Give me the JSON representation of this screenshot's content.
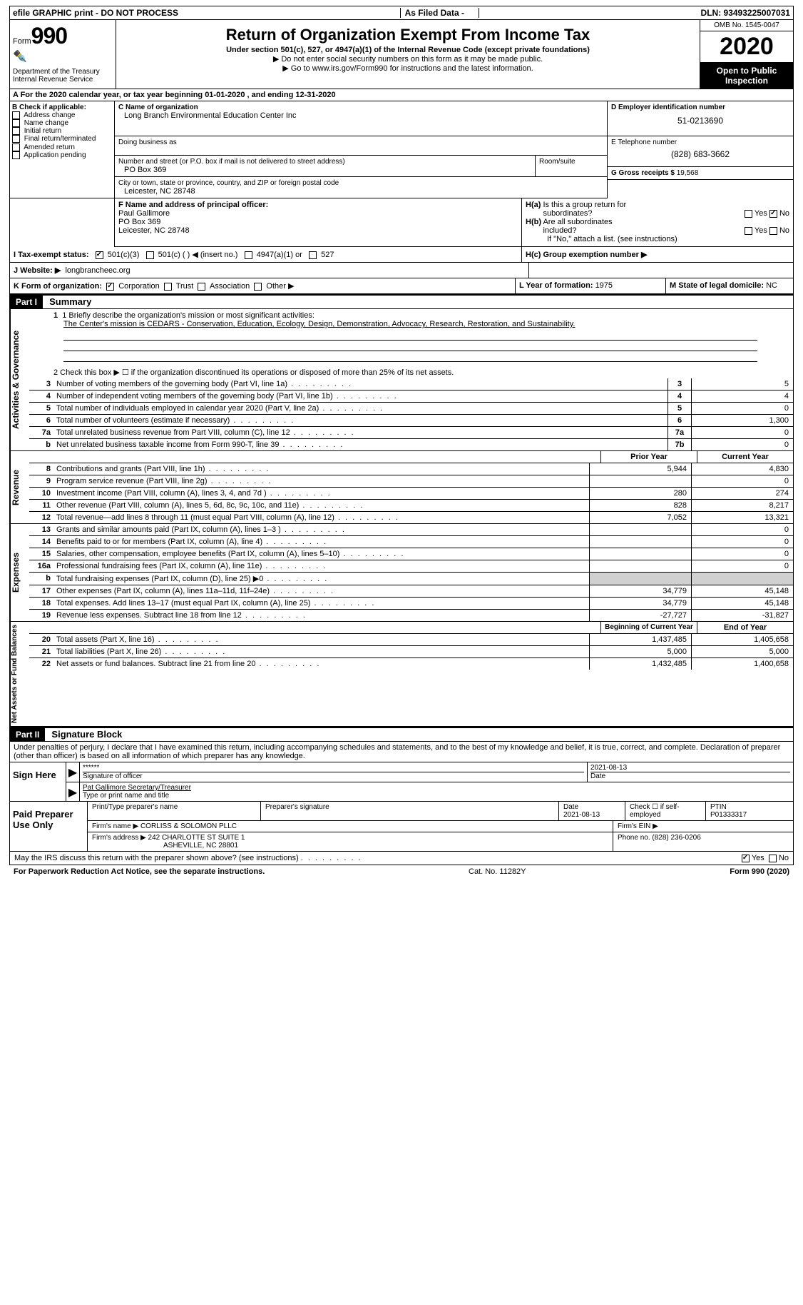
{
  "topbar": {
    "left": "efile GRAPHIC print - DO NOT PROCESS",
    "mid": "As Filed Data -",
    "right": "DLN: 93493225007031"
  },
  "header": {
    "form_word": "Form",
    "form_num": "990",
    "dept": "Department of the Treasury\nInternal Revenue Service",
    "title": "Return of Organization Exempt From Income Tax",
    "sub1": "Under section 501(c), 527, or 4947(a)(1) of the Internal Revenue Code (except private foundations)",
    "sub2": "▶ Do not enter social security numbers on this form as it may be made public.",
    "sub3_pre": "▶ Go to ",
    "sub3_link": "www.irs.gov/Form990",
    "sub3_post": " for instructions and the latest information.",
    "omb": "OMB No. 1545-0047",
    "year": "2020",
    "open": "Open to Public Inspection"
  },
  "row_a": "A   For the 2020 calendar year, or tax year beginning 01-01-2020   , and ending 12-31-2020",
  "section_b": {
    "label": "B Check if applicable:",
    "items": [
      "Address change",
      "Name change",
      "Initial return",
      "Final return/terminated",
      "Amended return",
      "Application pending"
    ]
  },
  "section_c": {
    "label": "C Name of organization",
    "name": "Long Branch Environmental Education Center Inc",
    "dba_label": "Doing business as",
    "street_label": "Number and street (or P.O. box if mail is not delivered to street address)",
    "room_label": "Room/suite",
    "street": "PO Box 369",
    "city_label": "City or town, state or province, country, and ZIP or foreign postal code",
    "city": "Leicester, NC  28748"
  },
  "section_d": {
    "label": "D Employer identification number",
    "val": "51-0213690"
  },
  "section_e": {
    "label": "E Telephone number",
    "val": "(828) 683-3662"
  },
  "section_g": {
    "label": "G Gross receipts $ ",
    "val": "19,568"
  },
  "section_f": {
    "label": "F  Name and address of principal officer:",
    "name": "Paul Gallimore",
    "addr1": "PO Box 369",
    "addr2": "Leicester, NC  28748"
  },
  "section_h": {
    "a_label": "H(a)  Is this a group return for subordinates?",
    "a_yes": "Yes",
    "a_no": "No",
    "b_label": "H(b)  Are all subordinates included?",
    "b_yes": "Yes",
    "b_no": "No",
    "b_note": "If \"No,\" attach a list. (see instructions)",
    "c_label": "H(c)  Group exemption number ▶"
  },
  "row_i": {
    "label": "I   Tax-exempt status:",
    "o1": "501(c)(3)",
    "o2": "501(c) (   ) ◀ (insert no.)",
    "o3": "4947(a)(1) or",
    "o4": "527"
  },
  "row_j": {
    "label": "J   Website: ▶",
    "val": "longbrancheec.org"
  },
  "row_k": {
    "label": "K Form of organization:",
    "o1": "Corporation",
    "o2": "Trust",
    "o3": "Association",
    "o4": "Other ▶"
  },
  "row_l": {
    "label": "L Year of formation: ",
    "val": "1975"
  },
  "row_m": {
    "label": "M State of legal domicile: ",
    "val": "NC"
  },
  "part1": {
    "header": "Part I",
    "title": "Summary"
  },
  "mission": {
    "line1_label": "1  Briefly describe the organization's mission or most significant activities:",
    "text": "The Center's mission is CEDARS - Conservation, Education, Ecology, Design, Demonstration, Advocacy, Research, Restoration, and Sustainability."
  },
  "line2": "2   Check this box ▶ ☐ if the organization discontinued its operations or disposed of more than 25% of its net assets.",
  "gov_lines": [
    {
      "n": "3",
      "d": "Number of voting members of the governing body (Part VI, line 1a)",
      "box": "3",
      "v": "5"
    },
    {
      "n": "4",
      "d": "Number of independent voting members of the governing body (Part VI, line 1b)",
      "box": "4",
      "v": "4"
    },
    {
      "n": "5",
      "d": "Total number of individuals employed in calendar year 2020 (Part V, line 2a)",
      "box": "5",
      "v": "0"
    },
    {
      "n": "6",
      "d": "Total number of volunteers (estimate if necessary)",
      "box": "6",
      "v": "1,300"
    },
    {
      "n": "7a",
      "d": "Total unrelated business revenue from Part VIII, column (C), line 12",
      "box": "7a",
      "v": "0"
    },
    {
      "n": "b",
      "d": "Net unrelated business taxable income from Form 990-T, line 39",
      "box": "7b",
      "v": "0"
    }
  ],
  "yr_hdr": {
    "prior": "Prior Year",
    "curr": "Current Year"
  },
  "revenue": [
    {
      "n": "8",
      "d": "Contributions and grants (Part VIII, line 1h)",
      "p": "5,944",
      "c": "4,830"
    },
    {
      "n": "9",
      "d": "Program service revenue (Part VIII, line 2g)",
      "p": "",
      "c": "0"
    },
    {
      "n": "10",
      "d": "Investment income (Part VIII, column (A), lines 3, 4, and 7d )",
      "p": "280",
      "c": "274"
    },
    {
      "n": "11",
      "d": "Other revenue (Part VIII, column (A), lines 5, 6d, 8c, 9c, 10c, and 11e)",
      "p": "828",
      "c": "8,217"
    },
    {
      "n": "12",
      "d": "Total revenue—add lines 8 through 11 (must equal Part VIII, column (A), line 12)",
      "p": "7,052",
      "c": "13,321"
    }
  ],
  "expenses": [
    {
      "n": "13",
      "d": "Grants and similar amounts paid (Part IX, column (A), lines 1–3 )",
      "p": "",
      "c": "0"
    },
    {
      "n": "14",
      "d": "Benefits paid to or for members (Part IX, column (A), line 4)",
      "p": "",
      "c": "0"
    },
    {
      "n": "15",
      "d": "Salaries, other compensation, employee benefits (Part IX, column (A), lines 5–10)",
      "p": "",
      "c": "0"
    },
    {
      "n": "16a",
      "d": "Professional fundraising fees (Part IX, column (A), line 11e)",
      "p": "",
      "c": "0"
    },
    {
      "n": "b",
      "d": "Total fundraising expenses (Part IX, column (D), line 25) ▶0",
      "p": "GRAY",
      "c": "GRAY"
    },
    {
      "n": "17",
      "d": "Other expenses (Part IX, column (A), lines 11a–11d, 11f–24e)",
      "p": "34,779",
      "c": "45,148"
    },
    {
      "n": "18",
      "d": "Total expenses. Add lines 13–17 (must equal Part IX, column (A), line 25)",
      "p": "34,779",
      "c": "45,148"
    },
    {
      "n": "19",
      "d": "Revenue less expenses. Subtract line 18 from line 12",
      "p": "-27,727",
      "c": "-31,827"
    }
  ],
  "net_hdr": {
    "beg": "Beginning of Current Year",
    "end": "End of Year"
  },
  "netassets": [
    {
      "n": "20",
      "d": "Total assets (Part X, line 16)",
      "p": "1,437,485",
      "c": "1,405,658"
    },
    {
      "n": "21",
      "d": "Total liabilities (Part X, line 26)",
      "p": "5,000",
      "c": "5,000"
    },
    {
      "n": "22",
      "d": "Net assets or fund balances. Subtract line 21 from line 20",
      "p": "1,432,485",
      "c": "1,400,658"
    }
  ],
  "part2": {
    "header": "Part II",
    "title": "Signature Block"
  },
  "perjury": "Under penalties of perjury, I declare that I have examined this return, including accompanying schedules and statements, and to the best of my knowledge and belief, it is true, correct, and complete. Declaration of preparer (other than officer) is based on all information of which preparer has any knowledge.",
  "sign": {
    "side": "Sign Here",
    "stars": "******",
    "sig_label": "Signature of officer",
    "date": "2021-08-13",
    "date_label": "Date",
    "name": "Pat Gallimore Secretary/Treasurer",
    "name_label": "Type or print name and title"
  },
  "paid": {
    "side": "Paid Preparer Use Only",
    "h1": "Print/Type preparer's name",
    "h2": "Preparer's signature",
    "h3_label": "Date",
    "h3": "2021-08-13",
    "h4_label": "Check ☐ if self-employed",
    "h5_label": "PTIN",
    "h5": "P01333317",
    "firm_label": "Firm's name    ▶ ",
    "firm": "CORLISS & SOLOMON PLLC",
    "ein_label": "Firm's EIN ▶",
    "addr_label": "Firm's address ▶ ",
    "addr1": "242 CHARLOTTE ST SUITE 1",
    "addr2": "ASHEVILLE, NC  28801",
    "phone_label": "Phone no. ",
    "phone": "(828) 236-0206"
  },
  "discuss": {
    "q": "May the IRS discuss this return with the preparer shown above? (see instructions)",
    "yes": "Yes",
    "no": "No"
  },
  "footer": {
    "left": "For Paperwork Reduction Act Notice, see the separate instructions.",
    "mid": "Cat. No. 11282Y",
    "right": "Form 990 (2020)"
  },
  "side_labels": {
    "gov": "Activities & Governance",
    "rev": "Revenue",
    "exp": "Expenses",
    "net": "Net Assets or Fund Balances"
  }
}
